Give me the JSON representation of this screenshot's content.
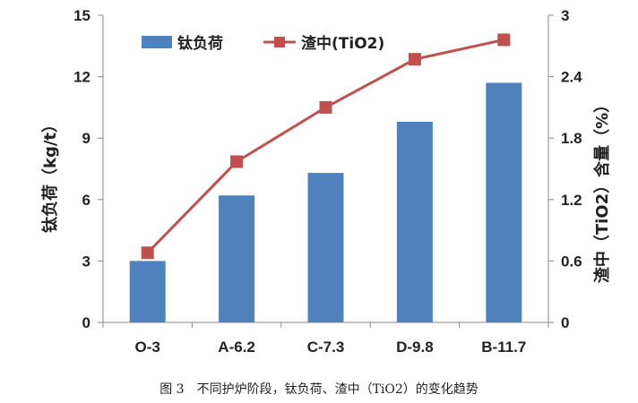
{
  "caption": "图 3　不同护炉阶段，钛负荷、渣中（TiO2）的变化趋势",
  "chart_data": {
    "type": "bar+line",
    "categories": [
      "O-3",
      "A-6.2",
      "C-7.3",
      "D-9.8",
      "B-11.7"
    ],
    "series": [
      {
        "name": "钛负荷",
        "type": "bar",
        "axis": "left",
        "color": "#4F81BD",
        "values": [
          3.0,
          6.2,
          7.3,
          9.8,
          11.7
        ]
      },
      {
        "name": "渣中(TiO2)",
        "type": "line",
        "axis": "right",
        "color": "#C0504D",
        "marker": "square",
        "values": [
          0.68,
          1.57,
          2.1,
          2.57,
          2.76
        ]
      }
    ],
    "ylabel": "钛负荷（kg/t）",
    "y2label": "渣中（TiO2）含量（%）",
    "ylim": [
      0,
      15
    ],
    "yticks": [
      "0",
      "3",
      "6",
      "9",
      "12",
      "15"
    ],
    "y2lim": [
      0,
      3
    ],
    "y2ticks": [
      "0",
      "0.6",
      "1.2",
      "1.8",
      "2.4",
      "3"
    ],
    "legend_position": "top-left",
    "grid": false
  }
}
